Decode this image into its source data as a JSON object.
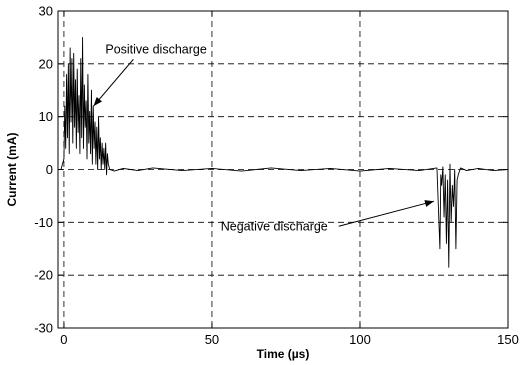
{
  "chart_data": {
    "type": "line",
    "title": "",
    "xlabel": "Time (µs)",
    "ylabel": "Current (mA)",
    "xlim": [
      -2,
      150
    ],
    "ylim": [
      -30,
      30
    ],
    "x_ticks": [
      0,
      50,
      100,
      150
    ],
    "y_ticks": [
      -30,
      -20,
      -10,
      0,
      10,
      20,
      30
    ],
    "x_tick_labels": [
      "0",
      "50",
      "100",
      "150"
    ],
    "y_tick_labels": [
      "-30",
      "-20",
      "-10",
      "0",
      "10",
      "20",
      "30"
    ],
    "grid": true,
    "grid_style": "dashed",
    "line_color": "#000000",
    "series": [
      {
        "x": [
          -1,
          0,
          0.3,
          0.6,
          0.9,
          1.2,
          1.5,
          1.8,
          2.1,
          2.4,
          2.7,
          3.0,
          3.3,
          3.6,
          3.9,
          4.2,
          4.5,
          4.8,
          5.1,
          5.4,
          5.7,
          6.0,
          6.3,
          6.6,
          6.9,
          7.2,
          7.5,
          7.8,
          8.1,
          8.4,
          8.7,
          9.0,
          9.3,
          9.6,
          9.9,
          10.2,
          10.5,
          10.8,
          11.1,
          11.4,
          11.7,
          12.0,
          12.3,
          12.6,
          12.9,
          13.2,
          13.5,
          13.8,
          14.1,
          14.4,
          14.7,
          15.0,
          15.5,
          17,
          20,
          25,
          30,
          40,
          50,
          60,
          70,
          80,
          90,
          100,
          110,
          120,
          126,
          127,
          127.3,
          127.6,
          128,
          128.4,
          128.8,
          129.2,
          129.6,
          130,
          130.4,
          130.8,
          131.2,
          131.6,
          132,
          132.4,
          132.8,
          133.2,
          134,
          136,
          140,
          145,
          150
        ],
        "y": [
          0,
          2,
          12,
          4,
          18,
          6,
          20,
          3,
          23,
          9,
          21,
          5,
          22,
          8,
          17,
          4,
          19,
          7,
          14,
          3,
          21,
          6,
          25,
          4,
          16,
          8,
          13,
          2,
          18,
          5,
          11,
          3,
          15,
          1,
          12,
          4,
          9,
          1,
          8,
          0,
          10,
          2,
          6,
          0,
          5,
          1,
          4,
          0,
          5,
          -1,
          3,
          1,
          0,
          -0.3,
          0.2,
          -0.2,
          0.3,
          -0.2,
          0.2,
          -0.3,
          0.3,
          -0.2,
          0.2,
          -0.3,
          0.2,
          -0.2,
          0.3,
          -15,
          -1,
          -3,
          0.5,
          -9,
          -1,
          -14,
          -2,
          -18.5,
          1,
          -10,
          -3,
          -7,
          0,
          -15,
          -2,
          -1,
          0.3,
          -0.2,
          0.2,
          -0.2,
          0
        ]
      }
    ],
    "annotations": [
      {
        "text": "Positive discharge",
        "x": 14,
        "y": 22,
        "arrow_to": [
          10,
          12
        ]
      },
      {
        "text": "Negative discharge",
        "x": 55,
        "y": -11.5,
        "arrow_to": [
          125,
          -6
        ]
      }
    ]
  }
}
